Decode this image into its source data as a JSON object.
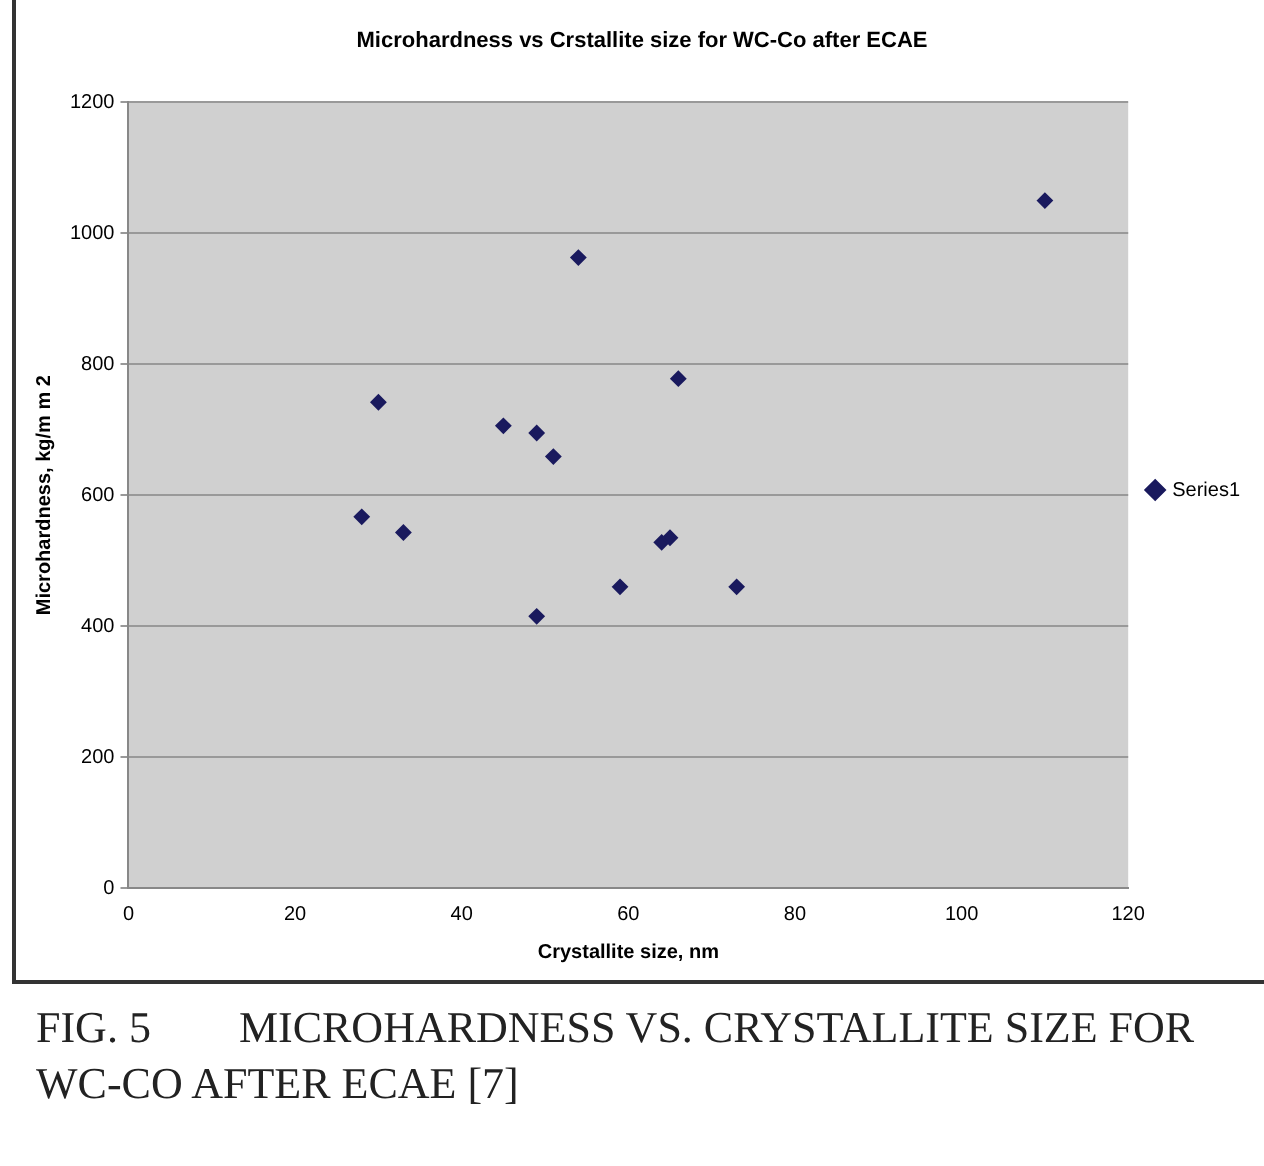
{
  "chart_data": {
    "type": "scatter",
    "title": "Microhardness vs Crstallite size for WC-Co after ECAE",
    "xlabel": "Crystallite size, nm",
    "ylabel": "Microhardness, kg/m m 2",
    "series": [
      {
        "name": "Series1",
        "color": "#1a1a5e",
        "x": [
          28,
          30,
          33,
          45,
          49,
          49,
          51,
          54,
          59,
          64,
          65,
          66,
          73,
          110
        ],
        "values": [
          567,
          742,
          543,
          706,
          695,
          415,
          659,
          963,
          460,
          528,
          535,
          778,
          460,
          1050
        ]
      }
    ],
    "xlim": [
      0,
      120
    ],
    "xticks": [
      0,
      20,
      40,
      60,
      80,
      100,
      120
    ],
    "ylim": [
      0,
      1200
    ],
    "yticks": [
      0,
      200,
      400,
      600,
      800,
      1000,
      1200
    ],
    "grid": "y",
    "legend": "right",
    "marker": "diamond",
    "annotations": [
      "FIG. 5  MICROHARDNESS VS. CRYSTALLITE SIZE FOR WC-CO AFTER ECAE [7]"
    ]
  }
}
